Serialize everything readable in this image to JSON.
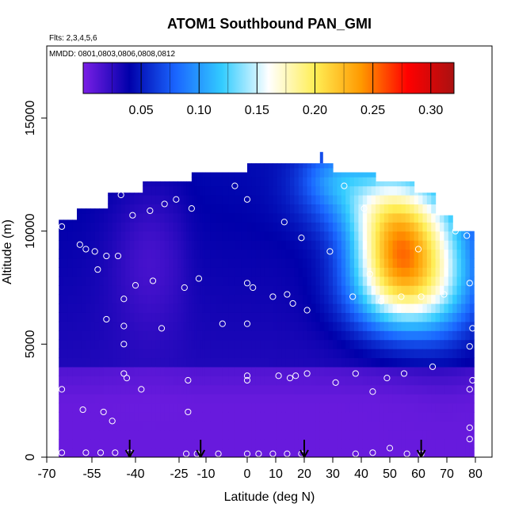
{
  "chart_data": {
    "type": "heatmap",
    "title": "ATOM1 Southbound PAN_GMI",
    "subtitle_flights": "Flts: 2,3,4,5,6",
    "subtitle_dates": "MMDD: 0801,0803,0806,0808,0812",
    "xlabel": "Latitude (deg N)",
    "ylabel": "Altitude (m)",
    "xlim": [
      -70,
      80
    ],
    "ylim": [
      0,
      17500
    ],
    "x_ticks": [
      -70,
      -55,
      -40,
      -25,
      -10,
      0,
      10,
      20,
      30,
      40,
      50,
      60,
      70,
      80
    ],
    "x_tick_labels": [
      "-70",
      "-55",
      "-40",
      "-25",
      "-10",
      "0",
      "10",
      "20",
      "30",
      "40",
      "50",
      "60",
      "70",
      "80"
    ],
    "y_ticks": [
      0,
      5000,
      10000,
      15000
    ],
    "y_tick_labels": [
      "0",
      "5000",
      "10000",
      "15000"
    ],
    "colorbar": {
      "range": [
        0.0,
        0.32
      ],
      "ticks": [
        0.05,
        0.1,
        0.15,
        0.2,
        0.25,
        0.3
      ],
      "tick_labels": [
        "0.05",
        "0.10",
        "0.15",
        "0.20",
        "0.25",
        "0.30"
      ],
      "colors": [
        "#7a1fe6",
        "#0000aa",
        "#1a66ff",
        "#33ccff",
        "#ffffff",
        "#ffee55",
        "#ff9900",
        "#ff0000",
        "#aa1111"
      ]
    },
    "arrows_latitude": [
      -42,
      -13,
      20,
      61
    ],
    "sample_points": [
      {
        "lat": -65,
        "alt": 10200
      },
      {
        "lat": -59,
        "alt": 9400
      },
      {
        "lat": -57,
        "alt": 9200
      },
      {
        "lat": -54,
        "alt": 9100
      },
      {
        "lat": -53,
        "alt": 8300
      },
      {
        "lat": -50,
        "alt": 8900
      },
      {
        "lat": -46,
        "alt": 8900
      },
      {
        "lat": -45,
        "alt": 11600
      },
      {
        "lat": -41,
        "alt": 10700
      },
      {
        "lat": -35,
        "alt": 10900
      },
      {
        "lat": -30,
        "alt": 11200
      },
      {
        "lat": -26,
        "alt": 11400
      },
      {
        "lat": -18,
        "alt": 11000
      },
      {
        "lat": -3,
        "alt": 12000
      },
      {
        "lat": 0,
        "alt": 11400
      },
      {
        "lat": 13,
        "alt": 10400
      },
      {
        "lat": 19,
        "alt": 9700
      },
      {
        "lat": 29,
        "alt": 9100
      },
      {
        "lat": 34,
        "alt": 12000
      },
      {
        "lat": 41,
        "alt": 11000
      },
      {
        "lat": 65,
        "alt": 12400
      },
      {
        "lat": 73,
        "alt": 10000
      },
      {
        "lat": 77,
        "alt": 9800
      },
      {
        "lat": 60,
        "alt": 9200
      },
      {
        "lat": -40,
        "alt": 7600
      },
      {
        "lat": -34,
        "alt": 7800
      },
      {
        "lat": -22,
        "alt": 7500
      },
      {
        "lat": -14,
        "alt": 7900
      },
      {
        "lat": 0,
        "alt": 7700
      },
      {
        "lat": 2,
        "alt": 7500
      },
      {
        "lat": 9,
        "alt": 7100
      },
      {
        "lat": 14,
        "alt": 7200
      },
      {
        "lat": 16,
        "alt": 6800
      },
      {
        "lat": 21,
        "alt": 6500
      },
      {
        "lat": 43,
        "alt": 8100
      },
      {
        "lat": 37,
        "alt": 7100
      },
      {
        "lat": 47,
        "alt": 6900
      },
      {
        "lat": 54,
        "alt": 7100
      },
      {
        "lat": 61,
        "alt": 7100
      },
      {
        "lat": 69,
        "alt": 7200
      },
      {
        "lat": 78,
        "alt": 7700
      },
      {
        "lat": -44,
        "alt": 7000
      },
      {
        "lat": -50,
        "alt": 6100
      },
      {
        "lat": -44,
        "alt": 5800
      },
      {
        "lat": -31,
        "alt": 5700
      },
      {
        "lat": -6,
        "alt": 5900
      },
      {
        "lat": 0,
        "alt": 5900
      },
      {
        "lat": -44,
        "alt": 5000
      },
      {
        "lat": 79,
        "alt": 5700
      },
      {
        "lat": 78,
        "alt": 4900
      },
      {
        "lat": -44,
        "alt": 3700
      },
      {
        "lat": -43,
        "alt": 3500
      },
      {
        "lat": -38,
        "alt": 3000
      },
      {
        "lat": -20,
        "alt": 3400
      },
      {
        "lat": 0,
        "alt": 3600
      },
      {
        "lat": 0,
        "alt": 3400
      },
      {
        "lat": 11,
        "alt": 3600
      },
      {
        "lat": 15,
        "alt": 3500
      },
      {
        "lat": 17,
        "alt": 3600
      },
      {
        "lat": 21,
        "alt": 3700
      },
      {
        "lat": 31,
        "alt": 3300
      },
      {
        "lat": 38,
        "alt": 3700
      },
      {
        "lat": 44,
        "alt": 2900
      },
      {
        "lat": 49,
        "alt": 3500
      },
      {
        "lat": 55,
        "alt": 3700
      },
      {
        "lat": 65,
        "alt": 4000
      },
      {
        "lat": 79,
        "alt": 3400
      },
      {
        "lat": 78,
        "alt": 3000
      },
      {
        "lat": -65,
        "alt": 3000
      },
      {
        "lat": -58,
        "alt": 2100
      },
      {
        "lat": -51,
        "alt": 2000
      },
      {
        "lat": -48,
        "alt": 1600
      },
      {
        "lat": -20,
        "alt": 2000
      },
      {
        "lat": 78,
        "alt": 1300
      },
      {
        "lat": 78,
        "alt": 800
      },
      {
        "lat": -65,
        "alt": 200
      },
      {
        "lat": -57,
        "alt": 200
      },
      {
        "lat": -52,
        "alt": 200
      },
      {
        "lat": -47,
        "alt": 200
      },
      {
        "lat": -42,
        "alt": 200
      },
      {
        "lat": -21,
        "alt": 150
      },
      {
        "lat": -7,
        "alt": 150
      },
      {
        "lat": 0,
        "alt": 150
      },
      {
        "lat": 4,
        "alt": 150
      },
      {
        "lat": 9,
        "alt": 150
      },
      {
        "lat": 14,
        "alt": 150
      },
      {
        "lat": 19,
        "alt": 150
      },
      {
        "lat": 38,
        "alt": 150
      },
      {
        "lat": 44,
        "alt": 200
      },
      {
        "lat": 50,
        "alt": 400
      },
      {
        "lat": 56,
        "alt": 150
      },
      {
        "lat": 61,
        "alt": 150
      },
      {
        "lat": -15,
        "alt": 150
      }
    ]
  }
}
